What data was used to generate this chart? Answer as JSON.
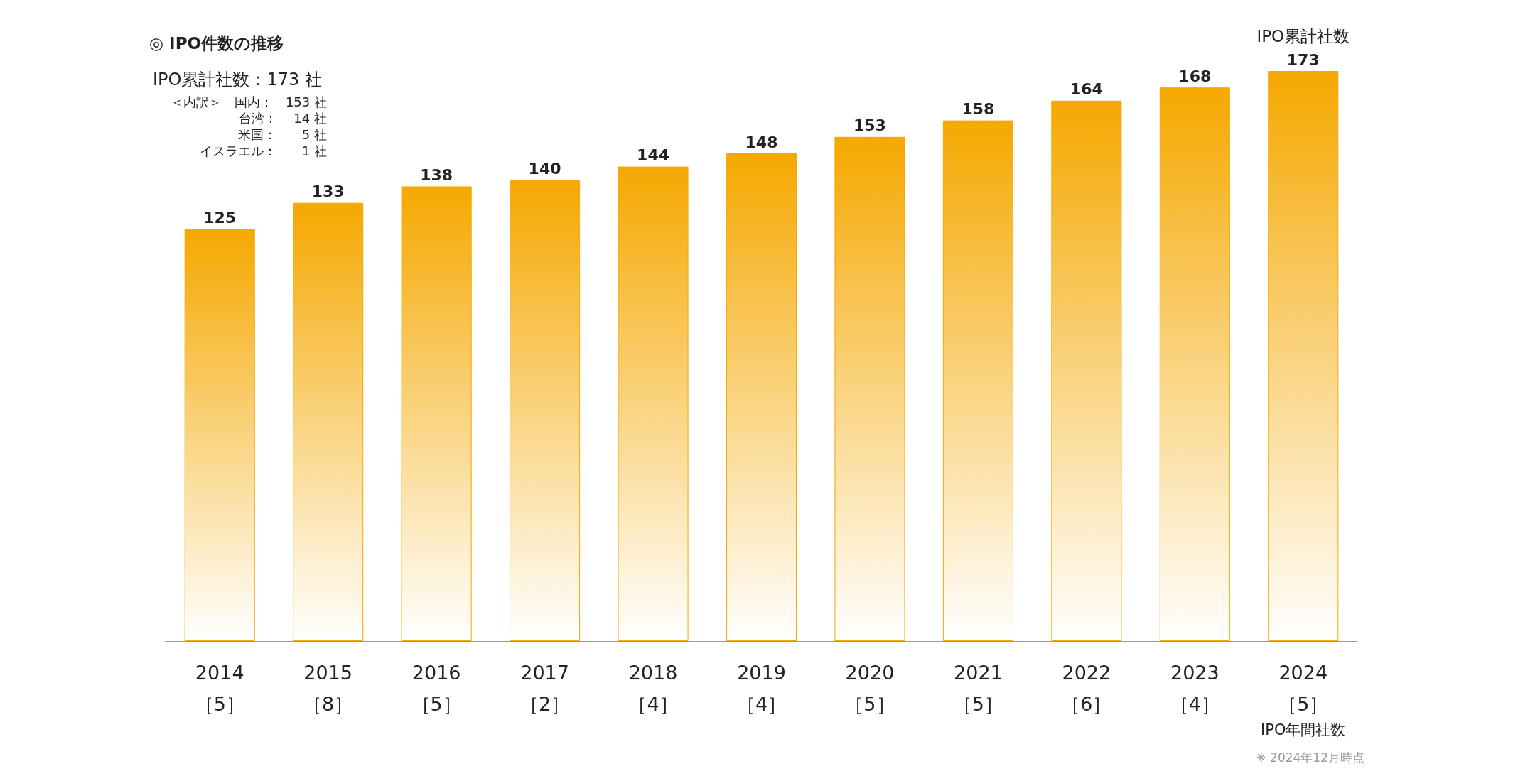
{
  "chart_data": {
    "type": "bar",
    "title": "◎ IPO件数の推移",
    "categories": [
      "2014\n［5］",
      "2015\n［8］",
      "2016\n［5］",
      "2017\n［2］",
      "2018\n［4］",
      "2019\n［4］",
      "2020\n［5］",
      "2021\n［5］",
      "2022\n［6］",
      "2023\n［4］",
      "2024\n［5］"
    ],
    "values": [
      125,
      133,
      138,
      140,
      144,
      148,
      153,
      158,
      164,
      168,
      173
    ],
    "color": "#f5a800",
    "data_labels": true,
    "annotations": [
      "IPO累計社数：173 社",
      "＜内訳＞　国内：　153 社",
      "台湾：　 14 社",
      "米国：　　5 社",
      "イスラエル：　　1 社",
      "IPO累計社数",
      "IPO年間社数",
      "※ 2024年12月時点"
    ]
  }
}
